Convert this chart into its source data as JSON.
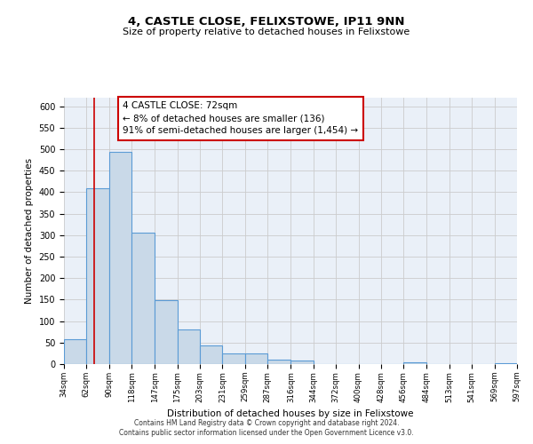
{
  "title1": "4, CASTLE CLOSE, FELIXSTOWE, IP11 9NN",
  "title2": "Size of property relative to detached houses in Felixstowe",
  "xlabel": "Distribution of detached houses by size in Felixstowe",
  "ylabel": "Number of detached properties",
  "bins": [
    34,
    62,
    90,
    118,
    147,
    175,
    203,
    231,
    259,
    287,
    316,
    344,
    372,
    400,
    428,
    456,
    484,
    513,
    541,
    569,
    597
  ],
  "values": [
    57,
    410,
    493,
    305,
    149,
    80,
    44,
    25,
    25,
    10,
    8,
    0,
    0,
    0,
    0,
    5,
    0,
    0,
    0,
    3
  ],
  "bar_face_color": "#c9d9e8",
  "bar_edge_color": "#5b9bd5",
  "vline_x": 72,
  "vline_color": "#cc0000",
  "annotation_box_color": "#cc0000",
  "annotation_text_line1": "4 CASTLE CLOSE: 72sqm",
  "annotation_text_line2": "← 8% of detached houses are smaller (136)",
  "annotation_text_line3": "91% of semi-detached houses are larger (1,454) →",
  "ylim": [
    0,
    620
  ],
  "yticks": [
    0,
    50,
    100,
    150,
    200,
    250,
    300,
    350,
    400,
    450,
    500,
    550,
    600
  ],
  "footnote1": "Contains HM Land Registry data © Crown copyright and database right 2024.",
  "footnote2": "Contains public sector information licensed under the Open Government Licence v3.0.",
  "bg_color": "#ffffff",
  "grid_color": "#cccccc",
  "tick_labels": [
    "34sqm",
    "62sqm",
    "90sqm",
    "118sqm",
    "147sqm",
    "175sqm",
    "203sqm",
    "231sqm",
    "259sqm",
    "287sqm",
    "316sqm",
    "344sqm",
    "372sqm",
    "400sqm",
    "428sqm",
    "456sqm",
    "484sqm",
    "513sqm",
    "541sqm",
    "569sqm",
    "597sqm"
  ]
}
